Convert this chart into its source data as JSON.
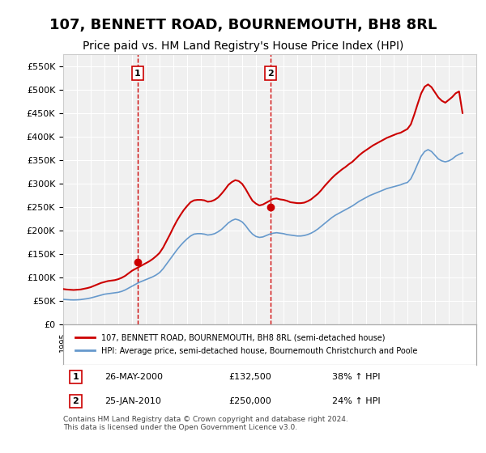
{
  "title": "107, BENNETT ROAD, BOURNEMOUTH, BH8 8RL",
  "subtitle": "Price paid vs. HM Land Registry's House Price Index (HPI)",
  "title_fontsize": 13,
  "subtitle_fontsize": 10,
  "background_color": "#ffffff",
  "plot_bg_color": "#f0f0f0",
  "grid_color": "#ffffff",
  "red_line_color": "#cc0000",
  "blue_line_color": "#6699cc",
  "marker_color": "#cc0000",
  "vline_color": "#cc0000",
  "xlabel": "",
  "ylabel": "",
  "ylim": [
    0,
    575000
  ],
  "yticks": [
    0,
    50000,
    100000,
    150000,
    200000,
    250000,
    300000,
    350000,
    400000,
    450000,
    500000,
    550000
  ],
  "ytick_labels": [
    "£0",
    "£50K",
    "£100K",
    "£150K",
    "£200K",
    "£250K",
    "£300K",
    "£350K",
    "£400K",
    "£450K",
    "£500K",
    "£550K"
  ],
  "xmin": 1995.0,
  "xmax": 2025.0,
  "purchase1": {
    "year": 2000.4,
    "price": 132500,
    "label": "1",
    "date": "26-MAY-2000",
    "hpi_pct": "38% ↑ HPI"
  },
  "purchase2": {
    "year": 2010.07,
    "price": 250000,
    "label": "2",
    "date": "25-JAN-2010",
    "hpi_pct": "24% ↑ HPI"
  },
  "legend_label_red": "107, BENNETT ROAD, BOURNEMOUTH, BH8 8RL (semi-detached house)",
  "legend_label_blue": "HPI: Average price, semi-detached house, Bournemouth Christchurch and Poole",
  "footnote": "Contains HM Land Registry data © Crown copyright and database right 2024.\nThis data is licensed under the Open Government Licence v3.0.",
  "hpi_years": [
    1995.0,
    1995.25,
    1995.5,
    1995.75,
    1996.0,
    1996.25,
    1996.5,
    1996.75,
    1997.0,
    1997.25,
    1997.5,
    1997.75,
    1998.0,
    1998.25,
    1998.5,
    1998.75,
    1999.0,
    1999.25,
    1999.5,
    1999.75,
    2000.0,
    2000.25,
    2000.5,
    2000.75,
    2001.0,
    2001.25,
    2001.5,
    2001.75,
    2002.0,
    2002.25,
    2002.5,
    2002.75,
    2003.0,
    2003.25,
    2003.5,
    2003.75,
    2004.0,
    2004.25,
    2004.5,
    2004.75,
    2005.0,
    2005.25,
    2005.5,
    2005.75,
    2006.0,
    2006.25,
    2006.5,
    2006.75,
    2007.0,
    2007.25,
    2007.5,
    2007.75,
    2008.0,
    2008.25,
    2008.5,
    2008.75,
    2009.0,
    2009.25,
    2009.5,
    2009.75,
    2010.0,
    2010.25,
    2010.5,
    2010.75,
    2011.0,
    2011.25,
    2011.5,
    2011.75,
    2012.0,
    2012.25,
    2012.5,
    2012.75,
    2013.0,
    2013.25,
    2013.5,
    2013.75,
    2014.0,
    2014.25,
    2014.5,
    2014.75,
    2015.0,
    2015.25,
    2015.5,
    2015.75,
    2016.0,
    2016.25,
    2016.5,
    2016.75,
    2017.0,
    2017.25,
    2017.5,
    2017.75,
    2018.0,
    2018.25,
    2018.5,
    2018.75,
    2019.0,
    2019.25,
    2019.5,
    2019.75,
    2020.0,
    2020.25,
    2020.5,
    2020.75,
    2021.0,
    2021.25,
    2021.5,
    2021.75,
    2022.0,
    2022.25,
    2022.5,
    2022.75,
    2023.0,
    2023.25,
    2023.5,
    2023.75,
    2024.0
  ],
  "hpi_values": [
    53000,
    52500,
    52000,
    51800,
    52000,
    52500,
    53500,
    54500,
    56000,
    58000,
    60000,
    62000,
    64000,
    65000,
    66000,
    67000,
    68000,
    70000,
    73000,
    77000,
    81000,
    85000,
    89000,
    92000,
    95000,
    98000,
    101000,
    105000,
    110000,
    118000,
    128000,
    138000,
    148000,
    158000,
    167000,
    175000,
    182000,
    188000,
    192000,
    193000,
    193000,
    192000,
    190000,
    191000,
    193000,
    197000,
    202000,
    209000,
    216000,
    221000,
    224000,
    222000,
    218000,
    210000,
    200000,
    192000,
    187000,
    185000,
    186000,
    189000,
    192000,
    194000,
    195000,
    194000,
    193000,
    191000,
    190000,
    189000,
    188000,
    188000,
    189000,
    191000,
    194000,
    198000,
    203000,
    209000,
    215000,
    221000,
    227000,
    232000,
    236000,
    240000,
    244000,
    248000,
    252000,
    257000,
    262000,
    266000,
    270000,
    274000,
    277000,
    280000,
    283000,
    286000,
    289000,
    291000,
    293000,
    295000,
    297000,
    300000,
    302000,
    310000,
    325000,
    342000,
    358000,
    368000,
    372000,
    368000,
    360000,
    352000,
    348000,
    346000,
    348000,
    352000,
    358000,
    362000,
    365000
  ],
  "red_years": [
    1995.0,
    1995.25,
    1995.5,
    1995.75,
    1996.0,
    1996.25,
    1996.5,
    1996.75,
    1997.0,
    1997.25,
    1997.5,
    1997.75,
    1998.0,
    1998.25,
    1998.5,
    1998.75,
    1999.0,
    1999.25,
    1999.5,
    1999.75,
    2000.0,
    2000.25,
    2000.5,
    2000.75,
    2001.0,
    2001.25,
    2001.5,
    2001.75,
    2002.0,
    2002.25,
    2002.5,
    2002.75,
    2003.0,
    2003.25,
    2003.5,
    2003.75,
    2004.0,
    2004.25,
    2004.5,
    2004.75,
    2005.0,
    2005.25,
    2005.5,
    2005.75,
    2006.0,
    2006.25,
    2006.5,
    2006.75,
    2007.0,
    2007.25,
    2007.5,
    2007.75,
    2008.0,
    2008.25,
    2008.5,
    2008.75,
    2009.0,
    2009.25,
    2009.5,
    2009.75,
    2010.0,
    2010.25,
    2010.5,
    2010.75,
    2011.0,
    2011.25,
    2011.5,
    2011.75,
    2012.0,
    2012.25,
    2012.5,
    2012.75,
    2013.0,
    2013.25,
    2013.5,
    2013.75,
    2014.0,
    2014.25,
    2014.5,
    2014.75,
    2015.0,
    2015.25,
    2015.5,
    2015.75,
    2016.0,
    2016.25,
    2016.5,
    2016.75,
    2017.0,
    2017.25,
    2017.5,
    2017.75,
    2018.0,
    2018.25,
    2018.5,
    2018.75,
    2019.0,
    2019.25,
    2019.5,
    2019.75,
    2020.0,
    2020.25,
    2020.5,
    2020.75,
    2021.0,
    2021.25,
    2021.5,
    2021.75,
    2022.0,
    2022.25,
    2022.5,
    2022.75,
    2023.0,
    2023.25,
    2023.5,
    2023.75,
    2024.0
  ],
  "red_values": [
    75000,
    74000,
    73500,
    73000,
    73500,
    74000,
    75500,
    77000,
    79000,
    82000,
    85000,
    88000,
    90000,
    92000,
    93000,
    94000,
    96000,
    99000,
    103000,
    108500,
    114000,
    118000,
    122000,
    126000,
    130000,
    134000,
    139000,
    145000,
    152000,
    163000,
    177000,
    191000,
    206000,
    220000,
    232000,
    243000,
    252000,
    260000,
    264000,
    265000,
    265000,
    264000,
    261000,
    262000,
    265000,
    270000,
    278000,
    287000,
    297000,
    303000,
    307000,
    305000,
    299000,
    288000,
    275000,
    263000,
    257000,
    253000,
    255000,
    259000,
    263000,
    267000,
    268000,
    266000,
    265000,
    263000,
    260000,
    259000,
    258000,
    258000,
    259000,
    262000,
    266000,
    272000,
    278000,
    286000,
    295000,
    303000,
    311000,
    318000,
    324000,
    330000,
    335000,
    341000,
    346000,
    353000,
    360000,
    366000,
    371000,
    376000,
    381000,
    385000,
    389000,
    393000,
    397000,
    400000,
    403000,
    406000,
    408000,
    412000,
    416000,
    426000,
    447000,
    470000,
    492000,
    506000,
    511000,
    505000,
    494000,
    483000,
    476000,
    472000,
    478000,
    484000,
    492000,
    496000,
    450000
  ]
}
